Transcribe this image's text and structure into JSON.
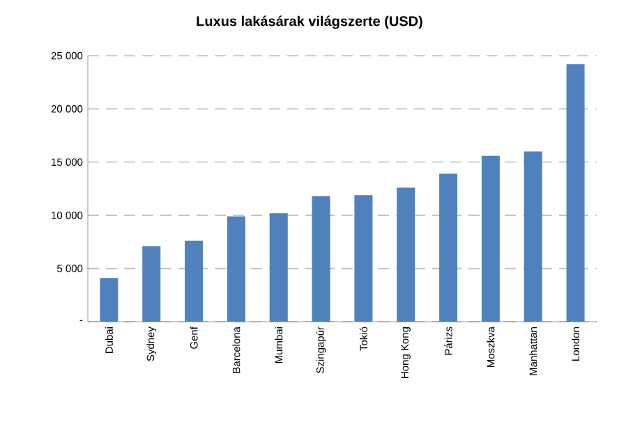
{
  "chart_data": {
    "type": "bar",
    "title": "Luxus lakásárak világszerte (USD)",
    "categories": [
      "Dubai",
      "Sydney",
      "Genf",
      "Barcelona",
      "Mumbai",
      "Szingapúr",
      "Tokió",
      "Hong Kong",
      "Párizs",
      "Moszkva",
      "Manhattan",
      "London"
    ],
    "values": [
      4100,
      7100,
      7600,
      9900,
      10200,
      11800,
      11900,
      12600,
      13900,
      15600,
      16000,
      24200
    ],
    "color": "#4f81bd",
    "ylim": [
      0,
      25000
    ],
    "yticks": [
      {
        "value": 0,
        "label": "-"
      },
      {
        "value": 5000,
        "label": "5 000"
      },
      {
        "value": 10000,
        "label": "10 000"
      },
      {
        "value": 15000,
        "label": "15 000"
      },
      {
        "value": 20000,
        "label": "20 000"
      },
      {
        "value": 25000,
        "label": "25 000"
      }
    ],
    "grid": "y"
  }
}
